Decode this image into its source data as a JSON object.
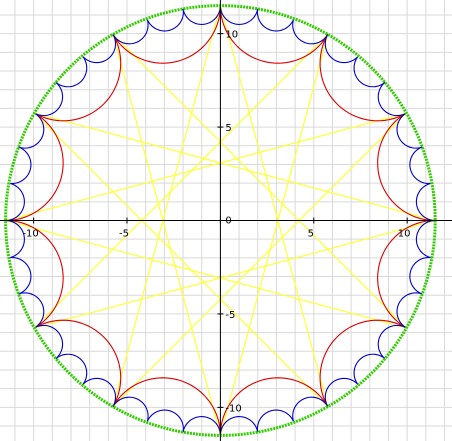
{
  "chart_data": {
    "type": "line",
    "title": "",
    "xlabel": "",
    "ylabel": "",
    "xlim": [
      -11.8,
      12.4
    ],
    "ylim": [
      -11.8,
      11.8
    ],
    "grid": true,
    "x_ticks": [
      -10,
      -5,
      0,
      5,
      10
    ],
    "y_ticks": [
      -10,
      -5,
      5,
      10
    ],
    "x_tick_labels": [
      "-10",
      "-5",
      "0",
      "5",
      "10"
    ],
    "y_tick_labels": [
      "-10",
      "-5",
      "5",
      "10"
    ],
    "origin_label": "0",
    "outer_circle": {
      "center": [
        0,
        0
      ],
      "radius": 11.5,
      "color": "#33cc00"
    },
    "star": {
      "points": 12,
      "step": 5,
      "radius": 11.5,
      "start_angle_deg": 0,
      "color": "#ffff33"
    },
    "large_arcs": {
      "count": 12,
      "color": "#dd0000"
    },
    "small_arcs": {
      "count": 36,
      "color": "#0000cc"
    },
    "colors": {
      "grid": "#d9d9d9",
      "axis": "#000000",
      "outer_circle": "#33cc00",
      "star": "#ffff33",
      "large_arcs": "#dd0000",
      "small_arcs": "#0000cc"
    }
  }
}
